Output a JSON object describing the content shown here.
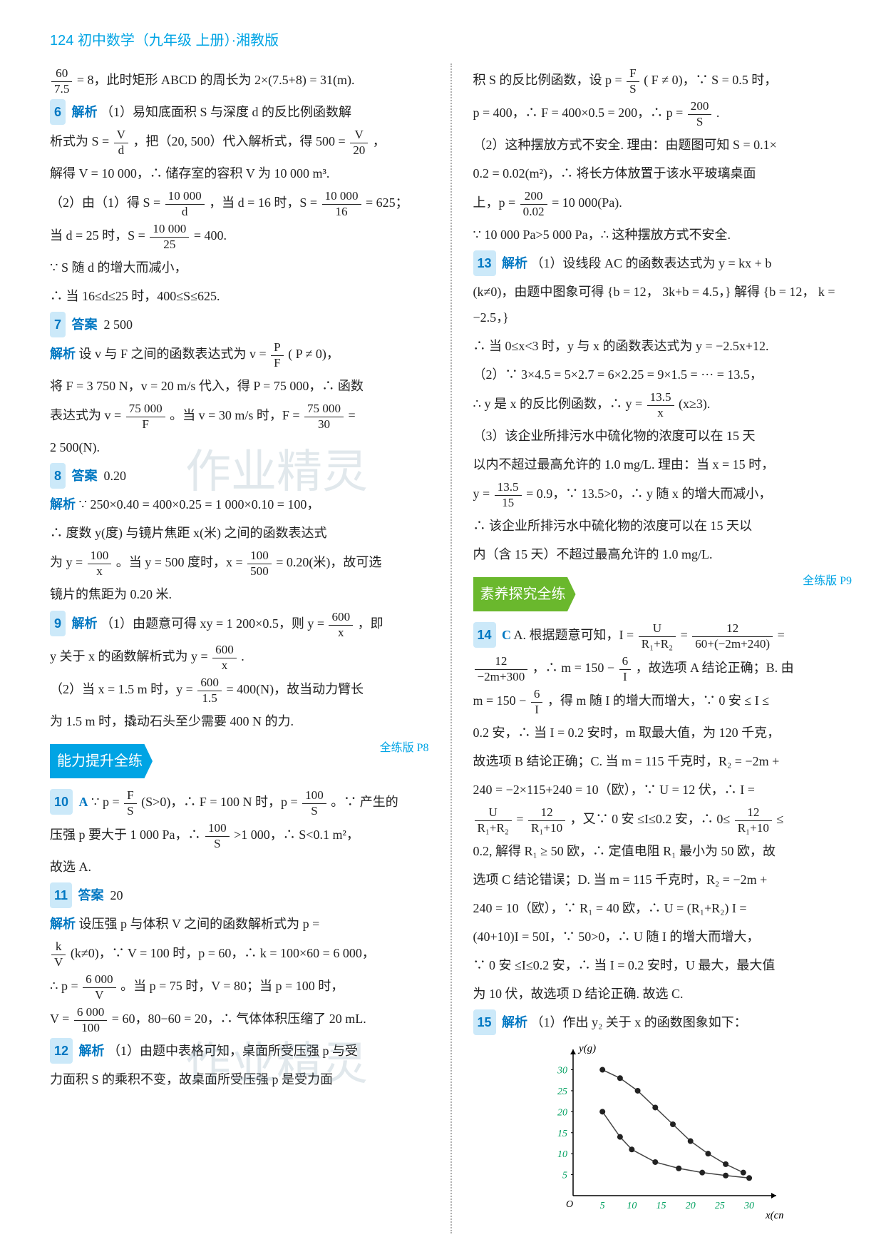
{
  "header": {
    "page_no": "124",
    "title": "初中数学（九年级 上册）·湘教版"
  },
  "left_column": {
    "l0": "60",
    "l0d": "7.5",
    "l0_rest": "= 8，此时矩形 ABCD 的周长为 2×(7.5+8) = 31(m).",
    "q6": "6",
    "q6_label": "解析",
    "q6_a": "（1）易知底面积 S 与深度 d 的反比例函数解",
    "q6_b": "析式为 S =",
    "q6_frac1n": "V",
    "q6_frac1d": "d",
    "q6_c": "，把（20, 500）代入解析式，得 500 =",
    "q6_frac2n": "V",
    "q6_frac2d": "20",
    "q6_d": "，",
    "q6_e": "解得 V = 10 000，∴ 储存室的容积 V 为 10 000 m³.",
    "q6_f": "（2）由（1）得 S =",
    "q6_f1n": "10 000",
    "q6_f1d": "d",
    "q6_g": "，当 d = 16 时，S =",
    "q6_g1n": "10 000",
    "q6_g1d": "16",
    "q6_h": "= 625；",
    "q6_i": "当 d = 25 时，S =",
    "q6_i1n": "10 000",
    "q6_i1d": "25",
    "q6_j": "= 400.",
    "q6_k": "∵ S 随 d 的增大而减小，",
    "q6_l": "∴ 当 16≤d≤25 时，400≤S≤625.",
    "q7": "7",
    "q7_label": "答案",
    "q7_ans": "2 500",
    "q7_exp_label": "解析",
    "q7_a": "设 v 与 F 之间的函数表达式为 v =",
    "q7_a1n": "P",
    "q7_a1d": "F",
    "q7_b": "( P ≠ 0)，",
    "q7_c": "将 F = 3 750 N，v = 20 m/s 代入，得 P = 75 000，∴ 函数",
    "q7_d": "表达式为 v =",
    "q7_d1n": "75 000",
    "q7_d1d": "F",
    "q7_e": "。当 v = 30 m/s 时，F =",
    "q7_e1n": "75 000",
    "q7_e1d": "30",
    "q7_f": "=",
    "q7_g": "2 500(N).",
    "q8": "8",
    "q8_label": "答案",
    "q8_ans": "0.20",
    "q8_exp_label": "解析",
    "q8_a": "∵ 250×0.40 = 400×0.25 = 1 000×0.10 = 100，",
    "q8_b": "∴ 度数 y(度) 与镜片焦距 x(米) 之间的函数表达式",
    "q8_c": "为 y =",
    "q8_c1n": "100",
    "q8_c1d": "x",
    "q8_d": "。当 y = 500 度时，x =",
    "q8_d1n": "100",
    "q8_d1d": "500",
    "q8_e": "= 0.20(米)，故可选",
    "q8_f": "镜片的焦距为 0.20 米.",
    "q9": "9",
    "q9_label": "解析",
    "q9_a": "（1）由题意可得 xy = 1 200×0.5，则 y =",
    "q9_a1n": "600",
    "q9_a1d": "x",
    "q9_b": "，即",
    "q9_c": "y 关于 x 的函数解析式为 y =",
    "q9_c1n": "600",
    "q9_c1d": "x",
    "q9_d": ".",
    "q9_e": "（2）当 x = 1.5 m 时，y =",
    "q9_e1n": "600",
    "q9_e1d": "1.5",
    "q9_f": "= 400(N)，故当动力臂长",
    "q9_g": "为 1.5 m 时，撬动石头至少需要 400 N 的力.",
    "banner1": "能力提升全练",
    "banner1_ref": "全练版 P8",
    "q10": "10",
    "q10_ans": "A",
    "q10_a": "∵ p =",
    "q10_a1n": "F",
    "q10_a1d": "S",
    "q10_b": "(S>0)，∴ F = 100 N 时，p =",
    "q10_b1n": "100",
    "q10_b1d": "S",
    "q10_c": "。∵ 产生的",
    "q10_d": "压强 p 要大于 1 000 Pa，∴",
    "q10_d1n": "100",
    "q10_d1d": "S",
    "q10_e": ">1 000，∴ S<0.1 m²，",
    "q10_f": "故选 A.",
    "q11": "11",
    "q11_label": "答案",
    "q11_ans": "20",
    "q11_exp_label": "解析",
    "q11_a": "设压强 p 与体积 V 之间的函数解析式为 p =",
    "q11_b1n": "k",
    "q11_b1d": "V",
    "q11_c": "(k≠0)，∵ V = 100 时，p = 60，∴ k = 100×60 = 6 000，",
    "q11_d": "∴ p =",
    "q11_d1n": "6 000",
    "q11_d1d": "V",
    "q11_e": "。当 p = 75 时，V = 80；当 p = 100 时，",
    "q11_f": "V =",
    "q11_f1n": "6 000",
    "q11_f1d": "100",
    "q11_g": "= 60，80−60 = 20，∴ 气体体积压缩了 20 mL.",
    "q12": "12",
    "q12_label": "解析",
    "q12_a": "（1）由题中表格可知，桌面所受压强 p 与受",
    "q12_b": "力面积 S 的乘积不变，故桌面所受压强 p 是受力面"
  },
  "right_column": {
    "r0_a": "积 S 的反比例函数，设 p =",
    "r0_a1n": "F",
    "r0_a1d": "S",
    "r0_b": "( F ≠ 0)，∵ S = 0.5 时，",
    "r0_c": "p = 400，∴ F = 400×0.5 = 200，∴ p =",
    "r0_c1n": "200",
    "r0_c1d": "S",
    "r0_d": ".",
    "r0_e": "（2）这种摆放方式不安全. 理由：由题图可知 S = 0.1×",
    "r0_f": "0.2 = 0.02(m²)，∴ 将长方体放置于该水平玻璃桌面",
    "r0_g": "上，p =",
    "r0_g1n": "200",
    "r0_g1d": "0.02",
    "r0_h": "= 10 000(Pa).",
    "r0_i": "∵ 10 000 Pa>5 000 Pa，∴ 这种摆放方式不安全.",
    "q13": "13",
    "q13_label": "解析",
    "q13_a": "（1）设线段 AC 的函数表达式为 y = kx + b",
    "q13_b": "(k≠0)，由题中图象可得",
    "q13_b1": "b = 12，",
    "q13_b2": "3k+b = 4.5，",
    "q13_c": "解得",
    "q13_c1": "b = 12，",
    "q13_c2": "k = −2.5，",
    "q13_d": "∴ 当 0≤x<3 时，y 与 x 的函数表达式为 y = −2.5x+12.",
    "q13_e": "（2）∵ 3×4.5 = 5×2.7 = 6×2.25 = 9×1.5 = ··· = 13.5，",
    "q13_f": "∴ y 是 x 的反比例函数，∴ y =",
    "q13_f1n": "13.5",
    "q13_f1d": "x",
    "q13_g": "(x≥3).",
    "q13_h": "（3）该企业所排污水中硫化物的浓度可以在 15 天",
    "q13_i": "以内不超过最高允许的 1.0 mg/L. 理由：当 x = 15 时，",
    "q13_j": "y =",
    "q13_j1n": "13.5",
    "q13_j1d": "15",
    "q13_k": "= 0.9，∵ 13.5>0，∴ y 随 x 的增大而减小，",
    "q13_l": "∴ 该企业所排污水中硫化物的浓度可以在 15 天以",
    "q13_m": "内（含 15 天）不超过最高允许的 1.0 mg/L.",
    "banner2": "素养探究全练",
    "banner2_ref": "全练版 P9",
    "q14": "14",
    "q14_ans": "C",
    "q14_a": "A. 根据题意可知，I =",
    "q14_a1n": "U",
    "q14_a1d": "R₁+R₂",
    "q14_b": "=",
    "q14_b1n": "12",
    "q14_b1d": "60+(−2m+240)",
    "q14_c": "=",
    "q14_d1n": "12",
    "q14_d1d": "−2m+300",
    "q14_e": "，∴ m = 150 −",
    "q14_e1n": "6",
    "q14_e1d": "I",
    "q14_f": "，故选项 A 结论正确；B. 由",
    "q14_g": "m = 150 −",
    "q14_g1n": "6",
    "q14_g1d": "I",
    "q14_h": "，得 m 随 I 的增大而增大，∵ 0 安 ≤ I ≤",
    "q14_i": "0.2 安，∴ 当 I = 0.2 安时，m 取最大值，为 120 千克，",
    "q14_j": "故选项 B 结论正确；C. 当 m = 115 千克时，R₂ = −2m +",
    "q14_k": "240 = −2×115+240 = 10（欧），∵ U = 12 伏，∴ I =",
    "q14_l1n": "U",
    "q14_l1d": "R₁+R₂",
    "q14_l2": "=",
    "q14_l3n": "12",
    "q14_l3d": "R₁+10",
    "q14_m": "，又∵ 0 安 ≤I≤0.2 安，∴ 0≤",
    "q14_m1n": "12",
    "q14_m1d": "R₁+10",
    "q14_n": "≤",
    "q14_o": "0.2, 解得 R₁ ≥ 50 欧，∴ 定值电阻 R₁ 最小为 50 欧，故",
    "q14_p": "选项 C 结论错误；D. 当 m = 115 千克时，R₂ = −2m +",
    "q14_q": "240 = 10（欧），∵ R₁ = 40 欧，∴ U = (R₁+R₂) I =",
    "q14_r": "(40+10)I = 50I，∵ 50>0，∴ U 随 I 的增大而增大，",
    "q14_s": "∵ 0 安 ≤I≤0.2 安，∴ 当 I = 0.2 安时，U 最大，最大值",
    "q14_t": "为 10 伏，故选项 D 结论正确. 故选 C.",
    "q15": "15",
    "q15_label": "解析",
    "q15_a": "（1）作出 y₂ 关于 x 的函数图象如下："
  },
  "chart": {
    "type": "scatter-line",
    "xlabel": "x(cm)",
    "ylabel": "y(g)",
    "x_ticks": [
      5,
      10,
      15,
      20,
      25,
      30
    ],
    "y_ticks": [
      5,
      10,
      15,
      20,
      25,
      30
    ],
    "xlim": [
      0,
      34
    ],
    "ylim": [
      0,
      34
    ],
    "series1_points": [
      [
        5,
        20
      ],
      [
        8,
        14
      ],
      [
        10,
        11
      ],
      [
        14,
        8
      ],
      [
        18,
        6.5
      ],
      [
        22,
        5.5
      ],
      [
        26,
        4.8
      ],
      [
        30,
        4.2
      ]
    ],
    "series2_points": [
      [
        5,
        30
      ],
      [
        8,
        28
      ],
      [
        11,
        25
      ],
      [
        14,
        21
      ],
      [
        17,
        17
      ],
      [
        20,
        13
      ],
      [
        23,
        10
      ],
      [
        26,
        7.5
      ],
      [
        29,
        5.5
      ]
    ],
    "point_color": "#222222",
    "line_color": "#444444",
    "axis_color": "#000000",
    "tick_label_color": "#00a060",
    "tick_fontsize": 14,
    "label_fontsize": 15,
    "marker_size": 4,
    "line_width": 1.5,
    "grid": false
  },
  "watermarks": {
    "w1": "作业精灵",
    "w2": "作业精灵"
  },
  "colors": {
    "header": "#00a4e4",
    "qnum_bg": "#cce9f9",
    "qnum_fg": "#0077c2",
    "banner_blue": "#00a4e4",
    "banner_green": "#6ab82d",
    "text": "#222222"
  }
}
